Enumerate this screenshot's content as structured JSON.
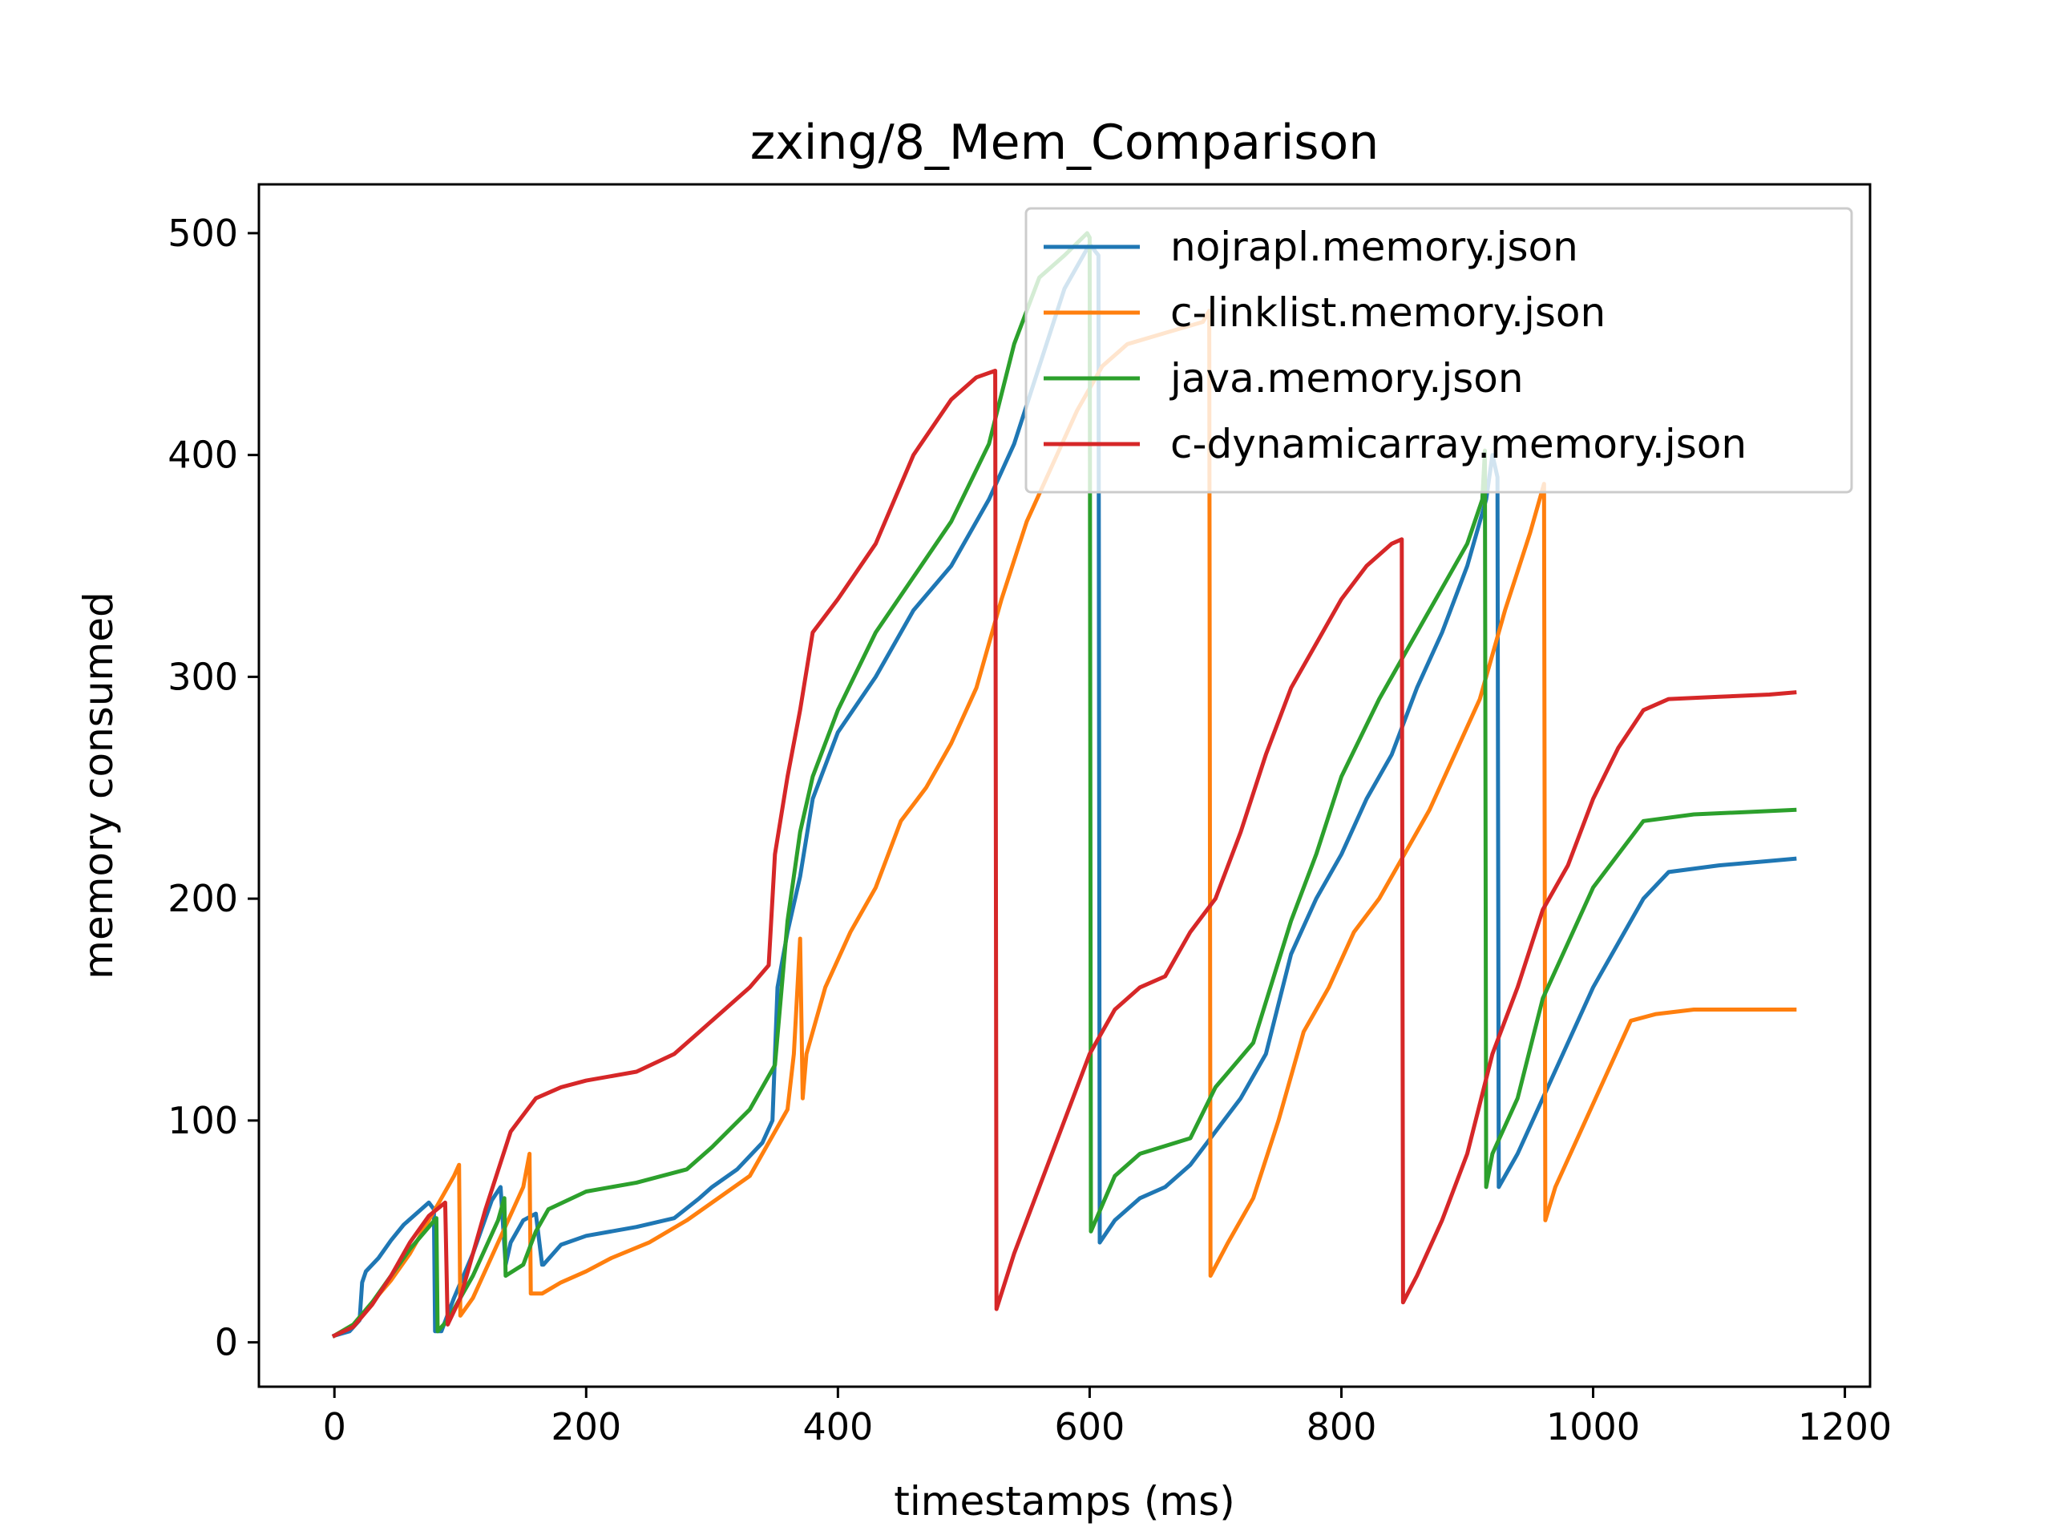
{
  "chart_data": {
    "type": "line",
    "title": "zxing/8_Mem_Comparison",
    "xlabel": "timestamps (ms)",
    "ylabel": "memory consumed",
    "xlim": [
      -60,
      1220
    ],
    "ylim": [
      -20,
      522
    ],
    "xticks": [
      0,
      200,
      400,
      600,
      800,
      1000,
      1200
    ],
    "yticks": [
      0,
      100,
      200,
      300,
      400,
      500
    ],
    "grid": false,
    "legend_position": "top-right",
    "series": [
      {
        "name": "nojrapl.memory.json",
        "color": "#1f77b4",
        "x": [
          0,
          12,
          20,
          22,
          25,
          35,
          45,
          55,
          65,
          75,
          79,
          80,
          85,
          95,
          110,
          125,
          132,
          136,
          140,
          150,
          160,
          165,
          166,
          180,
          200,
          240,
          270,
          290,
          300,
          320,
          340,
          348,
          352,
          360,
          370,
          380,
          400,
          430,
          460,
          490,
          520,
          540,
          560,
          580,
          600,
          607,
          608,
          620,
          640,
          660,
          680,
          700,
          720,
          740,
          760,
          780,
          800,
          820,
          840,
          860,
          880,
          900,
          915,
          920,
          924,
          925,
          940,
          960,
          980,
          1000,
          1020,
          1040,
          1060,
          1100,
          1140,
          1160
        ],
        "y": [
          3,
          5,
          10,
          27,
          32,
          38,
          46,
          53,
          58,
          63,
          60,
          5,
          5,
          20,
          40,
          64,
          70,
          35,
          45,
          55,
          58,
          35,
          35,
          44,
          48,
          52,
          56,
          65,
          70,
          78,
          90,
          100,
          160,
          185,
          210,
          245,
          275,
          300,
          330,
          350,
          380,
          405,
          440,
          475,
          495,
          490,
          45,
          55,
          65,
          70,
          80,
          95,
          110,
          130,
          175,
          200,
          220,
          245,
          265,
          295,
          320,
          350,
          380,
          400,
          390,
          70,
          85,
          110,
          135,
          160,
          180,
          200,
          212,
          215,
          217,
          218
        ]
      },
      {
        "name": "c-linklist.memory.json",
        "color": "#ff7f0e",
        "x": [
          0,
          15,
          30,
          45,
          60,
          75,
          85,
          95,
          99,
          100,
          110,
          130,
          150,
          155,
          156,
          165,
          180,
          200,
          220,
          250,
          280,
          300,
          330,
          360,
          365,
          370,
          372,
          375,
          390,
          410,
          430,
          450,
          470,
          490,
          510,
          530,
          550,
          570,
          590,
          610,
          630,
          660,
          690,
          695,
          696,
          710,
          730,
          750,
          770,
          790,
          810,
          830,
          850,
          870,
          890,
          910,
          930,
          950,
          961,
          962,
          970,
          990,
          1010,
          1030,
          1050,
          1080,
          1120,
          1160
        ],
        "y": [
          3,
          8,
          18,
          28,
          40,
          55,
          65,
          75,
          80,
          12,
          20,
          45,
          70,
          85,
          22,
          22,
          27,
          32,
          38,
          45,
          55,
          63,
          75,
          105,
          130,
          182,
          110,
          130,
          160,
          185,
          205,
          235,
          250,
          270,
          295,
          335,
          370,
          395,
          420,
          440,
          450,
          455,
          460,
          465,
          30,
          45,
          65,
          100,
          140,
          160,
          185,
          200,
          220,
          240,
          265,
          290,
          330,
          365,
          387,
          55,
          70,
          95,
          120,
          145,
          148,
          150,
          150,
          150
        ]
      },
      {
        "name": "java.memory.json",
        "color": "#2ca02c",
        "x": [
          0,
          15,
          30,
          45,
          60,
          75,
          81,
          82,
          90,
          110,
          130,
          135,
          136,
          150,
          160,
          170,
          200,
          240,
          280,
          300,
          330,
          350,
          360,
          370,
          380,
          400,
          430,
          460,
          490,
          520,
          540,
          560,
          580,
          598,
          600,
          601,
          620,
          640,
          680,
          700,
          730,
          760,
          780,
          800,
          830,
          860,
          880,
          900,
          912,
          914,
          915,
          920,
          940,
          960,
          980,
          1000,
          1020,
          1040,
          1080,
          1120,
          1160
        ],
        "y": [
          3,
          8,
          18,
          30,
          42,
          52,
          56,
          5,
          10,
          30,
          55,
          65,
          30,
          35,
          50,
          60,
          68,
          72,
          78,
          88,
          105,
          125,
          190,
          230,
          255,
          285,
          320,
          345,
          370,
          405,
          450,
          480,
          490,
          500,
          498,
          50,
          75,
          85,
          92,
          115,
          135,
          190,
          220,
          255,
          290,
          320,
          340,
          360,
          380,
          402,
          70,
          85,
          110,
          155,
          180,
          205,
          220,
          235,
          238,
          239,
          240
        ]
      },
      {
        "name": "c-dynamicarray.memory.json",
        "color": "#d62728",
        "x": [
          0,
          15,
          30,
          45,
          60,
          75,
          88,
          90,
          100,
          120,
          140,
          160,
          180,
          200,
          240,
          270,
          290,
          310,
          330,
          345,
          350,
          360,
          370,
          380,
          400,
          430,
          460,
          490,
          510,
          525,
          526,
          540,
          560,
          580,
          600,
          620,
          640,
          660,
          680,
          700,
          720,
          740,
          760,
          780,
          800,
          820,
          840,
          848,
          849,
          860,
          880,
          900,
          920,
          940,
          960,
          980,
          1000,
          1020,
          1040,
          1060,
          1100,
          1140,
          1160
        ],
        "y": [
          3,
          7,
          17,
          30,
          45,
          57,
          63,
          8,
          20,
          60,
          95,
          110,
          115,
          118,
          122,
          130,
          140,
          150,
          160,
          170,
          220,
          255,
          285,
          320,
          335,
          360,
          400,
          425,
          435,
          438,
          15,
          40,
          70,
          100,
          130,
          150,
          160,
          165,
          185,
          200,
          230,
          265,
          295,
          315,
          335,
          350,
          360,
          362,
          18,
          30,
          55,
          85,
          130,
          160,
          195,
          215,
          245,
          268,
          285,
          290,
          291,
          292,
          293
        ]
      }
    ]
  }
}
